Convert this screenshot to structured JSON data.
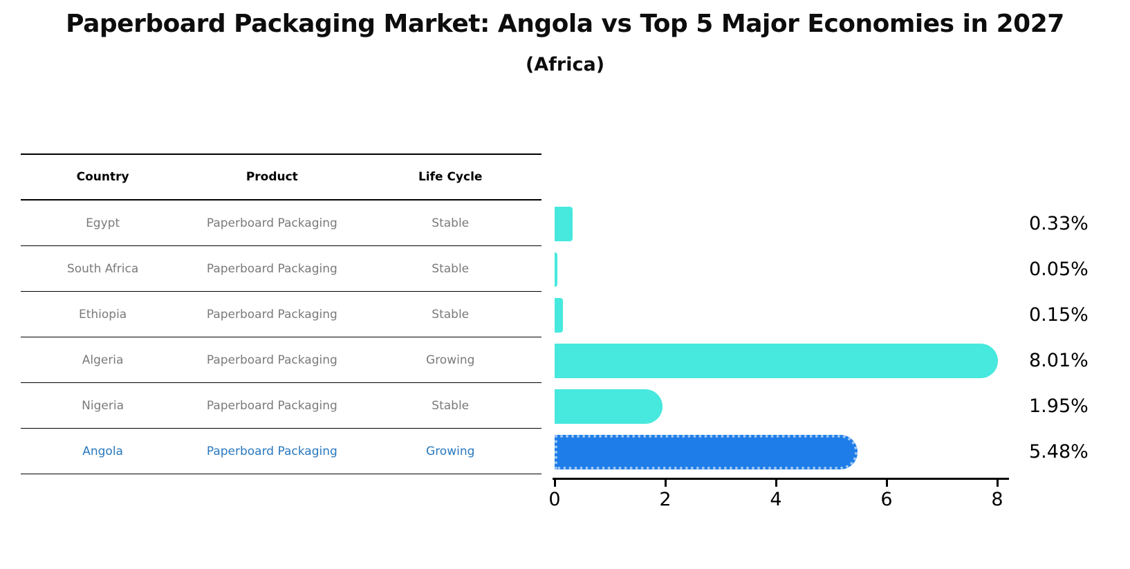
{
  "title": "Paperboard Packaging Market: Angola vs Top 5 Major Economies in 2027",
  "subtitle": "(Africa)",
  "table": {
    "headers": [
      "Country",
      "Product",
      "Life Cycle"
    ],
    "rows": [
      {
        "country": "Egypt",
        "product": "Paperboard Packaging",
        "life_cycle": "Stable",
        "highlighted": false
      },
      {
        "country": "South Africa",
        "product": "Paperboard Packaging",
        "life_cycle": "Stable",
        "highlighted": false
      },
      {
        "country": "Ethiopia",
        "product": "Paperboard Packaging",
        "life_cycle": "Stable",
        "highlighted": false
      },
      {
        "country": "Algeria",
        "product": "Paperboard Packaging",
        "life_cycle": "Growing",
        "highlighted": false
      },
      {
        "country": "Nigeria",
        "product": "Paperboard Packaging",
        "life_cycle": "Stable",
        "highlighted": false
      },
      {
        "country": "Angola",
        "product": "Paperboard Packaging",
        "life_cycle": "Growing",
        "highlighted": true
      }
    ]
  },
  "chart_data": {
    "type": "bar",
    "orientation": "horizontal",
    "title": "Paperboard Packaging Market: Angola vs Top 5 Major Economies in 2027 (Africa)",
    "categories": [
      "Egypt",
      "South Africa",
      "Ethiopia",
      "Algeria",
      "Nigeria",
      "Angola"
    ],
    "values": [
      0.33,
      0.05,
      0.15,
      8.01,
      1.95,
      5.48
    ],
    "value_labels": [
      "0.33%",
      "0.05%",
      "0.15%",
      "8.01%",
      "1.95%",
      "5.48%"
    ],
    "x_ticks": [
      "0",
      "2",
      "4",
      "6",
      "8"
    ],
    "xlim": [
      0,
      8.25
    ],
    "grid": false,
    "legend": false,
    "highlight_index": 5,
    "colors": {
      "bar": "#47E8DD",
      "highlight_bar": "#1E7DE8",
      "highlight_border": "#9CC6F3",
      "highlight_text": "#2878BE",
      "cell_text": "#7A7A7A",
      "axis": "#000000"
    }
  }
}
